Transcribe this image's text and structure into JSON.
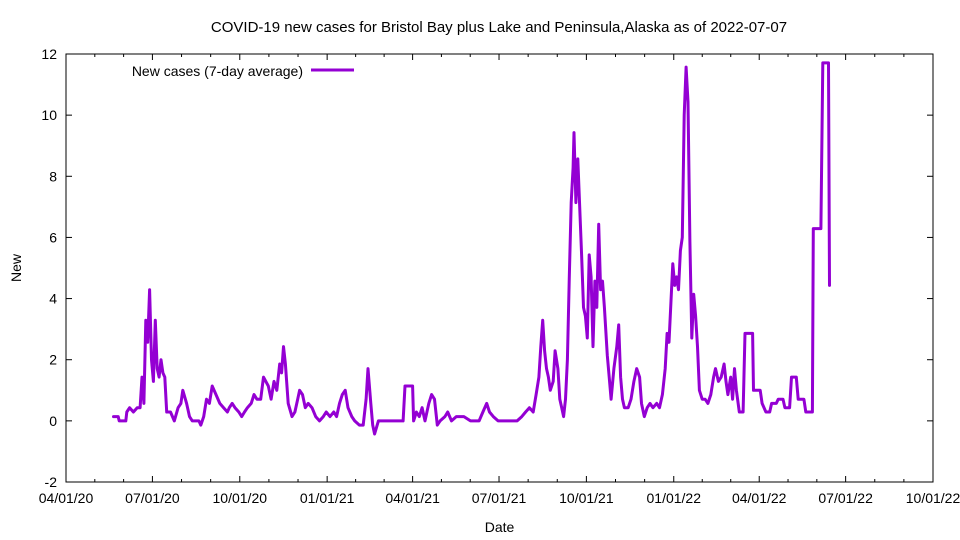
{
  "chart_data": {
    "type": "line",
    "title": "COVID-19 new cases for Bristol Bay plus Lake and Peninsula,Alaska as of 2022-07-07",
    "xlabel": "Date",
    "ylabel": "New",
    "ylim": [
      -2,
      12
    ],
    "xlim": [
      "2020-04-01",
      "2022-10-01"
    ],
    "yticks": [
      -2,
      0,
      2,
      4,
      6,
      8,
      10,
      12
    ],
    "xticks": [
      "2020-04-01",
      "2020-07-01",
      "2020-10-01",
      "2021-01-01",
      "2021-04-01",
      "2021-07-01",
      "2021-10-01",
      "2022-01-01",
      "2022-04-01",
      "2022-07-01",
      "2022-10-01"
    ],
    "xtick_labels": [
      "04/01/20",
      "07/01/20",
      "10/01/20",
      "01/01/21",
      "04/01/21",
      "07/01/21",
      "10/01/21",
      "01/01/22",
      "04/01/22",
      "07/01/22",
      "10/01/22"
    ],
    "grid": false,
    "legend_position": "top-left",
    "series": [
      {
        "name": "New cases (7-day average)",
        "color": "#9400d3",
        "points": [
          [
            "2020-05-21",
            0.14
          ],
          [
            "2020-05-26",
            0.14
          ],
          [
            "2020-05-27",
            0.0
          ],
          [
            "2020-06-03",
            0.0
          ],
          [
            "2020-06-04",
            0.29
          ],
          [
            "2020-06-07",
            0.43
          ],
          [
            "2020-06-11",
            0.29
          ],
          [
            "2020-06-15",
            0.43
          ],
          [
            "2020-06-18",
            0.43
          ],
          [
            "2020-06-20",
            1.43
          ],
          [
            "2020-06-22",
            0.57
          ],
          [
            "2020-06-24",
            3.29
          ],
          [
            "2020-06-26",
            2.57
          ],
          [
            "2020-06-28",
            4.29
          ],
          [
            "2020-06-30",
            2.0
          ],
          [
            "2020-07-02",
            1.29
          ],
          [
            "2020-07-04",
            3.29
          ],
          [
            "2020-07-06",
            1.71
          ],
          [
            "2020-07-08",
            1.43
          ],
          [
            "2020-07-10",
            2.0
          ],
          [
            "2020-07-12",
            1.57
          ],
          [
            "2020-07-14",
            1.43
          ],
          [
            "2020-07-16",
            0.29
          ],
          [
            "2020-07-20",
            0.29
          ],
          [
            "2020-07-24",
            0.0
          ],
          [
            "2020-07-28",
            0.43
          ],
          [
            "2020-07-31",
            0.57
          ],
          [
            "2020-08-02",
            1.0
          ],
          [
            "2020-08-06",
            0.57
          ],
          [
            "2020-08-09",
            0.14
          ],
          [
            "2020-08-12",
            0.0
          ],
          [
            "2020-08-19",
            0.0
          ],
          [
            "2020-08-21",
            -0.14
          ],
          [
            "2020-08-24",
            0.14
          ],
          [
            "2020-08-27",
            0.71
          ],
          [
            "2020-08-30",
            0.57
          ],
          [
            "2020-09-02",
            1.14
          ],
          [
            "2020-09-06",
            0.86
          ],
          [
            "2020-09-10",
            0.57
          ],
          [
            "2020-09-14",
            0.43
          ],
          [
            "2020-09-18",
            0.29
          ],
          [
            "2020-09-20",
            0.43
          ],
          [
            "2020-09-23",
            0.57
          ],
          [
            "2020-09-26",
            0.43
          ],
          [
            "2020-09-30",
            0.29
          ],
          [
            "2020-10-03",
            0.14
          ],
          [
            "2020-10-06",
            0.29
          ],
          [
            "2020-10-09",
            0.43
          ],
          [
            "2020-10-13",
            0.57
          ],
          [
            "2020-10-16",
            0.86
          ],
          [
            "2020-10-19",
            0.71
          ],
          [
            "2020-10-23",
            0.71
          ],
          [
            "2020-10-26",
            1.43
          ],
          [
            "2020-10-31",
            1.14
          ],
          [
            "2020-11-03",
            0.71
          ],
          [
            "2020-11-06",
            1.29
          ],
          [
            "2020-11-09",
            1.0
          ],
          [
            "2020-11-12",
            1.86
          ],
          [
            "2020-11-14",
            1.57
          ],
          [
            "2020-11-16",
            2.43
          ],
          [
            "2020-11-18",
            1.86
          ],
          [
            "2020-11-21",
            0.57
          ],
          [
            "2020-11-25",
            0.14
          ],
          [
            "2020-11-28",
            0.29
          ],
          [
            "2020-12-01",
            0.71
          ],
          [
            "2020-12-03",
            1.0
          ],
          [
            "2020-12-06",
            0.86
          ],
          [
            "2020-12-09",
            0.43
          ],
          [
            "2020-12-12",
            0.57
          ],
          [
            "2020-12-16",
            0.43
          ],
          [
            "2020-12-20",
            0.14
          ],
          [
            "2020-12-24",
            0.0
          ],
          [
            "2020-12-28",
            0.14
          ],
          [
            "2020-12-31",
            0.29
          ],
          [
            "2021-01-04",
            0.14
          ],
          [
            "2021-01-08",
            0.29
          ],
          [
            "2021-01-11",
            0.14
          ],
          [
            "2021-01-14",
            0.57
          ],
          [
            "2021-01-17",
            0.86
          ],
          [
            "2021-01-20",
            1.0
          ],
          [
            "2021-01-23",
            0.43
          ],
          [
            "2021-01-27",
            0.14
          ],
          [
            "2021-01-30",
            0.0
          ],
          [
            "2021-02-04",
            -0.14
          ],
          [
            "2021-02-08",
            -0.14
          ],
          [
            "2021-02-11",
            0.71
          ],
          [
            "2021-02-13",
            1.71
          ],
          [
            "2021-02-16",
            0.57
          ],
          [
            "2021-02-18",
            -0.14
          ],
          [
            "2021-02-20",
            -0.43
          ],
          [
            "2021-02-24",
            0.0
          ],
          [
            "2021-03-04",
            0.0
          ],
          [
            "2021-03-14",
            0.0
          ],
          [
            "2021-03-22",
            0.0
          ],
          [
            "2021-03-24",
            1.14
          ],
          [
            "2021-04-01",
            1.14
          ],
          [
            "2021-04-02",
            0.0
          ],
          [
            "2021-04-05",
            0.29
          ],
          [
            "2021-04-08",
            0.14
          ],
          [
            "2021-04-11",
            0.43
          ],
          [
            "2021-04-14",
            0.0
          ],
          [
            "2021-04-18",
            0.57
          ],
          [
            "2021-04-21",
            0.86
          ],
          [
            "2021-04-24",
            0.71
          ],
          [
            "2021-04-27",
            -0.14
          ],
          [
            "2021-04-30",
            0.0
          ],
          [
            "2021-05-05",
            0.14
          ],
          [
            "2021-05-08",
            0.29
          ],
          [
            "2021-05-12",
            0.0
          ],
          [
            "2021-05-17",
            0.14
          ],
          [
            "2021-05-25",
            0.14
          ],
          [
            "2021-06-01",
            0.0
          ],
          [
            "2021-06-10",
            0.0
          ],
          [
            "2021-06-14",
            0.29
          ],
          [
            "2021-06-18",
            0.57
          ],
          [
            "2021-06-21",
            0.29
          ],
          [
            "2021-06-25",
            0.14
          ],
          [
            "2021-06-30",
            0.0
          ],
          [
            "2021-07-10",
            0.0
          ],
          [
            "2021-07-20",
            0.0
          ],
          [
            "2021-07-25",
            0.14
          ],
          [
            "2021-07-29",
            0.29
          ],
          [
            "2021-08-02",
            0.43
          ],
          [
            "2021-08-06",
            0.29
          ],
          [
            "2021-08-09",
            0.86
          ],
          [
            "2021-08-12",
            1.43
          ],
          [
            "2021-08-14",
            2.43
          ],
          [
            "2021-08-16",
            3.29
          ],
          [
            "2021-08-18",
            2.29
          ],
          [
            "2021-08-20",
            1.71
          ],
          [
            "2021-08-22",
            1.43
          ],
          [
            "2021-08-24",
            1.0
          ],
          [
            "2021-08-27",
            1.29
          ],
          [
            "2021-08-29",
            2.29
          ],
          [
            "2021-09-01",
            1.71
          ],
          [
            "2021-09-03",
            0.71
          ],
          [
            "2021-09-05",
            0.43
          ],
          [
            "2021-09-07",
            0.14
          ],
          [
            "2021-09-09",
            0.71
          ],
          [
            "2021-09-11",
            2.0
          ],
          [
            "2021-09-13",
            4.71
          ],
          [
            "2021-09-15",
            7.14
          ],
          [
            "2021-09-17",
            8.29
          ],
          [
            "2021-09-18",
            9.43
          ],
          [
            "2021-09-20",
            7.14
          ],
          [
            "2021-09-22",
            8.57
          ],
          [
            "2021-09-24",
            7.0
          ],
          [
            "2021-09-26",
            5.43
          ],
          [
            "2021-09-28",
            3.71
          ],
          [
            "2021-09-30",
            3.43
          ],
          [
            "2021-10-02",
            2.71
          ],
          [
            "2021-10-04",
            5.43
          ],
          [
            "2021-10-06",
            4.71
          ],
          [
            "2021-10-08",
            2.43
          ],
          [
            "2021-10-10",
            4.57
          ],
          [
            "2021-10-12",
            3.71
          ],
          [
            "2021-10-14",
            6.43
          ],
          [
            "2021-10-16",
            4.29
          ],
          [
            "2021-10-18",
            4.57
          ],
          [
            "2021-10-20",
            3.71
          ],
          [
            "2021-10-23",
            2.14
          ],
          [
            "2021-10-25",
            1.43
          ],
          [
            "2021-10-27",
            0.71
          ],
          [
            "2021-10-30",
            1.71
          ],
          [
            "2021-11-02",
            2.43
          ],
          [
            "2021-11-04",
            3.14
          ],
          [
            "2021-11-06",
            1.43
          ],
          [
            "2021-11-08",
            0.71
          ],
          [
            "2021-11-10",
            0.43
          ],
          [
            "2021-11-14",
            0.43
          ],
          [
            "2021-11-17",
            0.71
          ],
          [
            "2021-11-20",
            1.29
          ],
          [
            "2021-11-23",
            1.71
          ],
          [
            "2021-11-26",
            1.43
          ],
          [
            "2021-11-28",
            0.57
          ],
          [
            "2021-12-01",
            0.14
          ],
          [
            "2021-12-04",
            0.43
          ],
          [
            "2021-12-07",
            0.57
          ],
          [
            "2021-12-10",
            0.43
          ],
          [
            "2021-12-14",
            0.57
          ],
          [
            "2021-12-17",
            0.43
          ],
          [
            "2021-12-20",
            0.86
          ],
          [
            "2021-12-23",
            1.71
          ],
          [
            "2021-12-25",
            2.86
          ],
          [
            "2021-12-27",
            2.57
          ],
          [
            "2021-12-29",
            3.86
          ],
          [
            "2021-12-31",
            5.14
          ],
          [
            "2022-01-02",
            4.43
          ],
          [
            "2022-01-04",
            4.71
          ],
          [
            "2022-01-06",
            4.29
          ],
          [
            "2022-01-08",
            5.57
          ],
          [
            "2022-01-10",
            6.0
          ],
          [
            "2022-01-12",
            10.0
          ],
          [
            "2022-01-14",
            11.57
          ],
          [
            "2022-01-16",
            10.43
          ],
          [
            "2022-01-18",
            5.86
          ],
          [
            "2022-01-20",
            2.71
          ],
          [
            "2022-01-22",
            4.14
          ],
          [
            "2022-01-24",
            3.43
          ],
          [
            "2022-01-26",
            2.43
          ],
          [
            "2022-01-28",
            1.0
          ],
          [
            "2022-01-31",
            0.71
          ],
          [
            "2022-02-03",
            0.71
          ],
          [
            "2022-02-06",
            0.57
          ],
          [
            "2022-02-09",
            0.86
          ],
          [
            "2022-02-12",
            1.43
          ],
          [
            "2022-02-14",
            1.71
          ],
          [
            "2022-02-17",
            1.29
          ],
          [
            "2022-02-20",
            1.43
          ],
          [
            "2022-02-23",
            1.86
          ],
          [
            "2022-02-25",
            1.29
          ],
          [
            "2022-02-27",
            0.86
          ],
          [
            "2022-03-02",
            1.43
          ],
          [
            "2022-03-04",
            0.71
          ],
          [
            "2022-03-06",
            1.71
          ],
          [
            "2022-03-08",
            1.0
          ],
          [
            "2022-03-11",
            0.29
          ],
          [
            "2022-03-15",
            0.29
          ],
          [
            "2022-03-17",
            2.86
          ],
          [
            "2022-03-25",
            2.86
          ],
          [
            "2022-03-26",
            1.0
          ],
          [
            "2022-04-02",
            1.0
          ],
          [
            "2022-04-04",
            0.57
          ],
          [
            "2022-04-08",
            0.29
          ],
          [
            "2022-04-12",
            0.29
          ],
          [
            "2022-04-14",
            0.57
          ],
          [
            "2022-04-19",
            0.57
          ],
          [
            "2022-04-21",
            0.71
          ],
          [
            "2022-04-26",
            0.71
          ],
          [
            "2022-04-28",
            0.43
          ],
          [
            "2022-05-03",
            0.43
          ],
          [
            "2022-05-05",
            1.43
          ],
          [
            "2022-05-10",
            1.43
          ],
          [
            "2022-05-12",
            0.71
          ],
          [
            "2022-05-18",
            0.71
          ],
          [
            "2022-05-20",
            0.29
          ],
          [
            "2022-05-27",
            0.29
          ],
          [
            "2022-05-28",
            6.29
          ],
          [
            "2022-06-05",
            6.29
          ],
          [
            "2022-06-07",
            11.71
          ],
          [
            "2022-06-13",
            11.71
          ],
          [
            "2022-06-14",
            4.43
          ]
        ]
      }
    ]
  }
}
